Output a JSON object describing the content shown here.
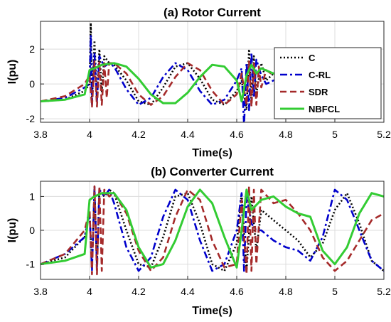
{
  "chart_data": [
    {
      "type": "line",
      "title": "(a) Rotor Current",
      "xlabel": "Time(s)",
      "ylabel": "I(pu)",
      "xlim": [
        3.8,
        5.2
      ],
      "ylim": [
        -2.2,
        3.6
      ],
      "xticks": [
        3.8,
        4,
        4.2,
        4.4,
        4.6,
        4.8,
        5,
        5.2
      ],
      "yticks": [
        -2,
        0,
        2
      ],
      "grid": true,
      "legend": "top-right",
      "series": [
        {
          "name": "C",
          "color": "#000000",
          "style": "dotted",
          "x": [
            3.8,
            3.9,
            3.98,
            4.0,
            4.005,
            4.01,
            4.02,
            4.03,
            4.04,
            4.05,
            4.06,
            4.08,
            4.1,
            4.15,
            4.2,
            4.25,
            4.3,
            4.35,
            4.4,
            4.45,
            4.5,
            4.55,
            4.6,
            4.62,
            4.64,
            4.65,
            4.66,
            4.67,
            4.68,
            4.7,
            4.72,
            4.75,
            4.8
          ],
          "y": [
            -1.0,
            -0.9,
            -0.4,
            0.0,
            3.5,
            -1.0,
            2.5,
            -0.8,
            2.0,
            -0.5,
            1.6,
            1.2,
            1.1,
            0.2,
            -1.0,
            -1.2,
            -0.2,
            1.0,
            1.2,
            0.3,
            -0.9,
            -1.2,
            -0.4,
            0.2,
            -1.5,
            2.0,
            -1.0,
            1.6,
            -0.6,
            1.2,
            0.2,
            0.6,
            0.8
          ]
        },
        {
          "name": "C-RL",
          "color": "#0000cc",
          "style": "dashdot",
          "x": [
            3.8,
            3.9,
            3.98,
            4.0,
            4.005,
            4.01,
            4.02,
            4.03,
            4.04,
            4.06,
            4.08,
            4.1,
            4.15,
            4.2,
            4.25,
            4.3,
            4.35,
            4.4,
            4.45,
            4.5,
            4.55,
            4.6,
            4.62,
            4.63,
            4.64,
            4.65,
            4.66,
            4.67,
            4.68,
            4.7,
            4.72,
            4.75,
            4.78,
            4.8
          ],
          "y": [
            -1.0,
            -0.8,
            -0.2,
            0.0,
            2.8,
            -1.2,
            1.8,
            -1.0,
            1.6,
            1.0,
            1.2,
            1.0,
            -0.3,
            -1.2,
            -0.8,
            0.4,
            1.2,
            0.8,
            -0.4,
            -1.2,
            -0.9,
            0.2,
            0.9,
            -2.4,
            1.2,
            -1.5,
            1.8,
            -0.8,
            1.4,
            0.5,
            0.0,
            0.2,
            -0.3,
            -0.2
          ]
        },
        {
          "name": "SDR",
          "color": "#a52a2a",
          "style": "dashed",
          "x": [
            3.8,
            3.9,
            3.98,
            4.0,
            4.01,
            4.02,
            4.03,
            4.04,
            4.05,
            4.06,
            4.07,
            4.08,
            4.1,
            4.15,
            4.2,
            4.25,
            4.3,
            4.35,
            4.4,
            4.45,
            4.5,
            4.55,
            4.6,
            4.62,
            4.64,
            4.65,
            4.66,
            4.67,
            4.68,
            4.69,
            4.7,
            4.72,
            4.75,
            4.8
          ],
          "y": [
            -1.0,
            -0.7,
            0.0,
            0.5,
            -1.3,
            1.3,
            -1.3,
            1.3,
            -1.2,
            1.2,
            -0.8,
            1.2,
            1.2,
            0.6,
            -0.6,
            -1.2,
            -0.7,
            0.4,
            1.2,
            0.8,
            -0.4,
            -1.2,
            -0.6,
            0.6,
            -1.2,
            1.3,
            -1.3,
            1.2,
            -1.2,
            1.0,
            -0.2,
            0.8,
            0.5,
            0.9
          ]
        },
        {
          "name": "NBFCL",
          "color": "#33cc33",
          "style": "solid",
          "x": [
            3.8,
            3.9,
            3.98,
            4.0,
            4.02,
            4.05,
            4.1,
            4.15,
            4.2,
            4.25,
            4.3,
            4.35,
            4.4,
            4.45,
            4.5,
            4.55,
            4.6,
            4.62,
            4.64,
            4.66,
            4.68,
            4.7,
            4.75,
            4.8
          ],
          "y": [
            -1.0,
            -0.9,
            -0.6,
            0.8,
            0.9,
            1.1,
            1.2,
            1.0,
            0.3,
            -0.6,
            -1.1,
            -1.1,
            -0.5,
            0.4,
            1.1,
            1.0,
            0.2,
            -1.0,
            0.5,
            1.1,
            0.6,
            0.9,
            0.6,
            0.8
          ]
        }
      ]
    },
    {
      "type": "line",
      "title": "(b) Converter Current",
      "xlabel": "Time(s)",
      "ylabel": "I(pu)",
      "xlim": [
        3.8,
        5.2
      ],
      "ylim": [
        -1.45,
        1.45
      ],
      "xticks": [
        3.8,
        4,
        4.2,
        4.4,
        4.6,
        4.8,
        5,
        5.2
      ],
      "yticks": [
        -1,
        0,
        1
      ],
      "grid": true,
      "series": [
        {
          "name": "C",
          "color": "#000000",
          "style": "dotted",
          "x": [
            3.8,
            3.9,
            3.98,
            4.0,
            4.01,
            4.02,
            4.03,
            4.04,
            4.06,
            4.08,
            4.1,
            4.15,
            4.2,
            4.25,
            4.3,
            4.35,
            4.4,
            4.45,
            4.5,
            4.55,
            4.6,
            4.62,
            4.64,
            4.66,
            4.68,
            4.7,
            4.75,
            4.8,
            4.85,
            4.9,
            4.95,
            5.0,
            5.05,
            5.1,
            5.15,
            5.2
          ],
          "y": [
            -1.0,
            -0.8,
            -0.2,
            0.5,
            -1.0,
            1.2,
            -1.0,
            1.2,
            1.0,
            1.2,
            1.1,
            0.0,
            -1.0,
            -1.1,
            -0.2,
            1.0,
            1.1,
            0.2,
            -1.0,
            -1.2,
            -0.4,
            1.1,
            -1.2,
            1.0,
            -0.6,
            0.6,
            0.3,
            0.0,
            -0.3,
            -0.8,
            -0.4,
            0.6,
            1.1,
            0.2,
            -0.9,
            -1.2
          ]
        },
        {
          "name": "C-RL",
          "color": "#0000cc",
          "style": "dashdot",
          "x": [
            3.8,
            3.9,
            3.98,
            4.0,
            4.01,
            4.02,
            4.03,
            4.04,
            4.06,
            4.08,
            4.1,
            4.15,
            4.2,
            4.25,
            4.3,
            4.35,
            4.4,
            4.45,
            4.5,
            4.55,
            4.6,
            4.62,
            4.63,
            4.64,
            4.66,
            4.68,
            4.7,
            4.75,
            4.8,
            4.85,
            4.9,
            4.95,
            5.0,
            5.05,
            5.1,
            5.15,
            5.2
          ],
          "y": [
            -1.0,
            -0.7,
            -0.2,
            0.5,
            -1.2,
            1.3,
            -1.1,
            1.2,
            1.0,
            1.2,
            0.8,
            -0.5,
            -1.2,
            -0.8,
            0.4,
            1.2,
            0.9,
            -0.3,
            -1.2,
            -1.0,
            0.0,
            1.1,
            -1.2,
            1.0,
            0.2,
            0.0,
            0.0,
            -0.3,
            -0.5,
            -0.6,
            -0.9,
            -0.2,
            1.2,
            0.9,
            0.0,
            -0.9,
            -1.2
          ]
        },
        {
          "name": "SDR",
          "color": "#a52a2a",
          "style": "dashed",
          "x": [
            3.8,
            3.9,
            3.98,
            4.0,
            4.01,
            4.02,
            4.03,
            4.04,
            4.05,
            4.06,
            4.08,
            4.1,
            4.15,
            4.2,
            4.25,
            4.3,
            4.35,
            4.4,
            4.45,
            4.5,
            4.55,
            4.6,
            4.62,
            4.64,
            4.65,
            4.66,
            4.67,
            4.68,
            4.7,
            4.75,
            4.8,
            4.85,
            4.9,
            4.95,
            5.0,
            5.05,
            5.1,
            5.15,
            5.2
          ],
          "y": [
            -1.0,
            -0.7,
            0.0,
            0.6,
            -1.3,
            1.3,
            -1.3,
            1.3,
            -1.2,
            1.2,
            1.0,
            1.1,
            0.5,
            -0.6,
            -1.2,
            -0.8,
            0.4,
            1.2,
            0.9,
            -0.3,
            -1.1,
            -1.0,
            0.9,
            -1.3,
            1.3,
            -1.2,
            1.2,
            -1.0,
            1.2,
            0.8,
            0.9,
            0.5,
            0.0,
            -0.8,
            -1.2,
            -0.9,
            -0.3,
            0.3,
            0.5
          ]
        },
        {
          "name": "NBFCL",
          "color": "#33cc33",
          "style": "solid",
          "x": [
            3.8,
            3.9,
            3.98,
            4.0,
            4.02,
            4.05,
            4.1,
            4.15,
            4.2,
            4.25,
            4.3,
            4.35,
            4.4,
            4.45,
            4.5,
            4.55,
            4.6,
            4.62,
            4.64,
            4.66,
            4.7,
            4.75,
            4.8,
            4.85,
            4.9,
            4.95,
            5.0,
            5.05,
            5.1,
            5.15,
            5.2
          ],
          "y": [
            -1.0,
            -0.9,
            -0.7,
            0.9,
            1.0,
            1.1,
            1.1,
            0.6,
            -0.5,
            -1.1,
            -1.0,
            -0.3,
            0.7,
            1.2,
            0.8,
            -0.2,
            -1.1,
            0.0,
            1.2,
            0.6,
            0.9,
            1.0,
            0.7,
            0.5,
            0.4,
            -0.6,
            -1.0,
            -0.5,
            0.5,
            1.1,
            1.0
          ]
        }
      ]
    }
  ]
}
